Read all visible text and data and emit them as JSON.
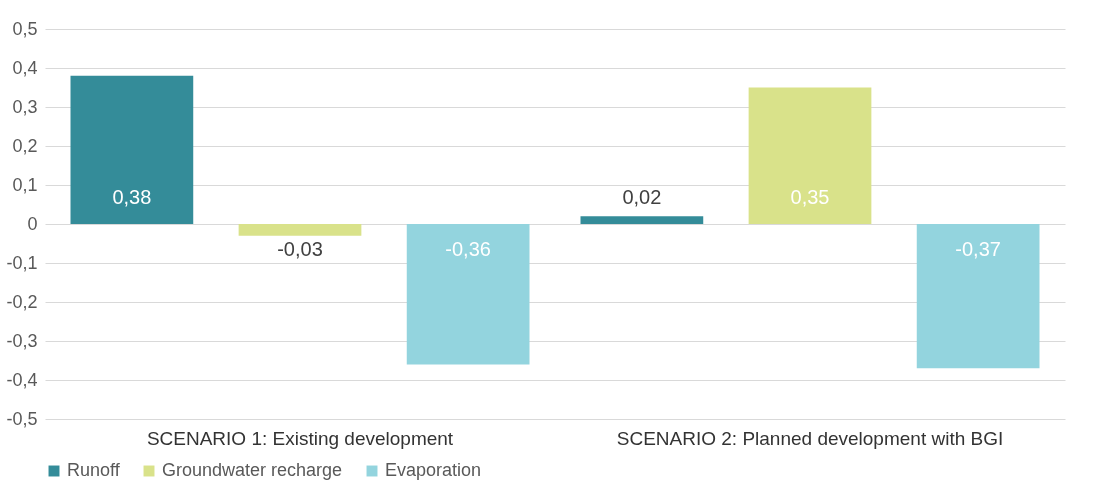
{
  "chart_data": {
    "type": "bar",
    "categories": [
      "SCENARIO 1: Existing development",
      "SCENARIO 2: Planned development with BGI"
    ],
    "series": [
      {
        "name": "Runoff",
        "color": "#348c99",
        "values": [
          0.38,
          0.02
        ],
        "value_labels": [
          "0,38",
          "0,02"
        ]
      },
      {
        "name": "Groundwater recharge",
        "color": "#d9e28a",
        "values": [
          -0.03,
          0.35
        ],
        "value_labels": [
          "-0,03",
          "0,35"
        ]
      },
      {
        "name": "Evaporation",
        "color": "#93d4de",
        "values": [
          -0.36,
          -0.37
        ],
        "value_labels": [
          "-0,36",
          "-0,37"
        ]
      }
    ],
    "ylim": [
      -0.5,
      0.5
    ],
    "yticks": [
      {
        "value": -0.5,
        "label": "-0,5"
      },
      {
        "value": -0.4,
        "label": "-0,4"
      },
      {
        "value": -0.3,
        "label": "-0,3"
      },
      {
        "value": -0.2,
        "label": "-0,2"
      },
      {
        "value": -0.1,
        "label": "-0,1"
      },
      0,
      {
        "value": 0.1,
        "label": "0,1"
      },
      {
        "value": 0.2,
        "label": "0,2"
      },
      {
        "value": 0.3,
        "label": "0,3"
      },
      {
        "value": 0.4,
        "label": "0,4"
      },
      {
        "value": 0.5,
        "label": "0,5"
      }
    ],
    "grid": "y",
    "legend": "bottom"
  }
}
